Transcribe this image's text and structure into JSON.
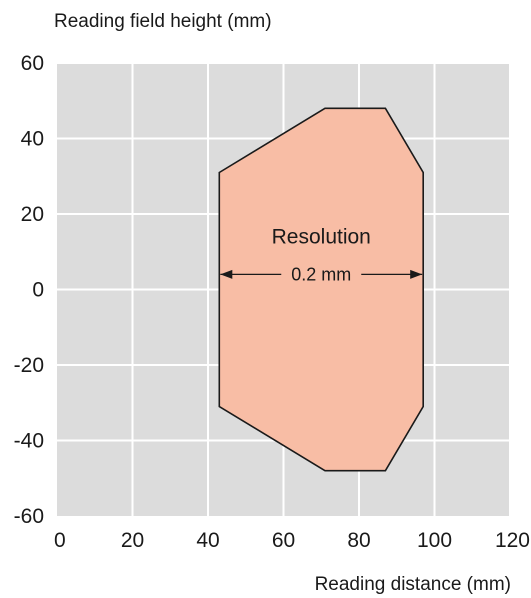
{
  "chart_data": {
    "type": "area",
    "ylabel": "Reading field height (mm)",
    "xlabel": "Reading distance (mm)",
    "xlim": [
      0,
      120
    ],
    "ylim": [
      -60,
      60
    ],
    "x_ticks": [
      0,
      20,
      40,
      60,
      80,
      100,
      120
    ],
    "y_ticks": [
      60,
      40,
      20,
      0,
      -20,
      -40,
      -60
    ],
    "grid": true,
    "colors": {
      "plot_background": "#dcdcdc",
      "grid": "#ffffff",
      "field_fill": "#f8bda5",
      "field_outline": "#1a1a1a"
    },
    "reading_field": {
      "points": [
        {
          "x": 43,
          "y": 31
        },
        {
          "x": 71,
          "y": 48
        },
        {
          "x": 87,
          "y": 48
        },
        {
          "x": 97,
          "y": 31
        },
        {
          "x": 97,
          "y": -31
        },
        {
          "x": 87,
          "y": -48
        },
        {
          "x": 71,
          "y": -48
        },
        {
          "x": 43,
          "y": -31
        }
      ]
    },
    "annotation": {
      "title": "Resolution",
      "value": "0.2 mm",
      "from_x": 43,
      "to_x": 97,
      "y": 4,
      "title_y": 14
    }
  }
}
